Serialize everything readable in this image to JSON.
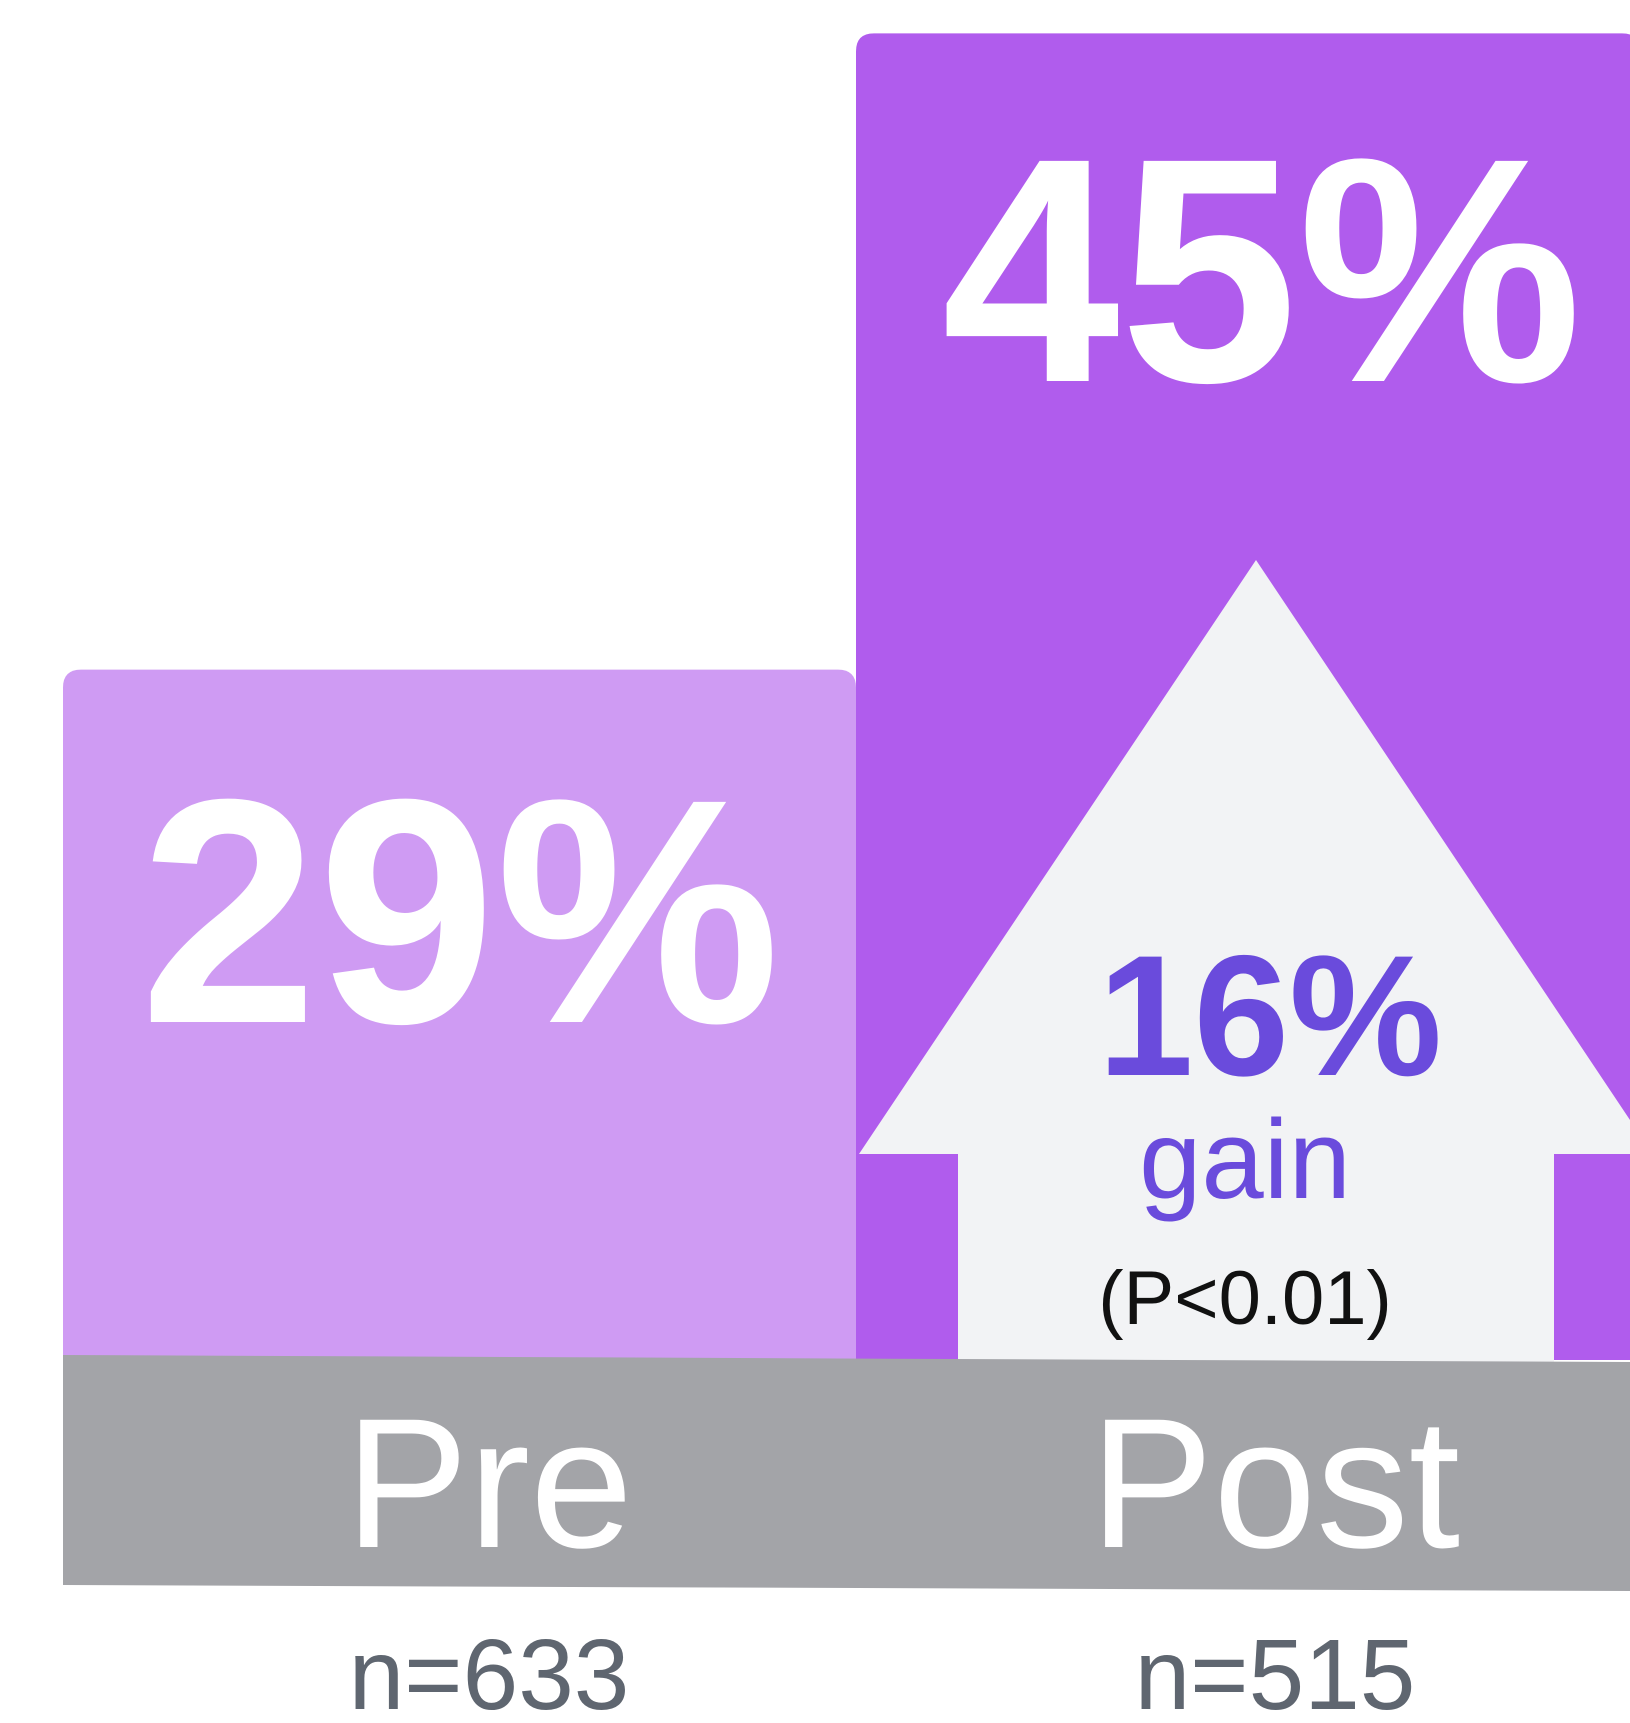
{
  "chart_data": {
    "type": "bar",
    "categories": [
      "Pre",
      "Post"
    ],
    "values": [
      29,
      45
    ],
    "value_labels": [
      "29%",
      "45%"
    ],
    "sample_labels": [
      "n=633",
      "n=515"
    ],
    "colors": [
      "#cf9bf3",
      "#b05ced"
    ],
    "gain": {
      "value": 16,
      "label": "16%",
      "text": "gain",
      "p_value": "(P<0.01)"
    }
  }
}
